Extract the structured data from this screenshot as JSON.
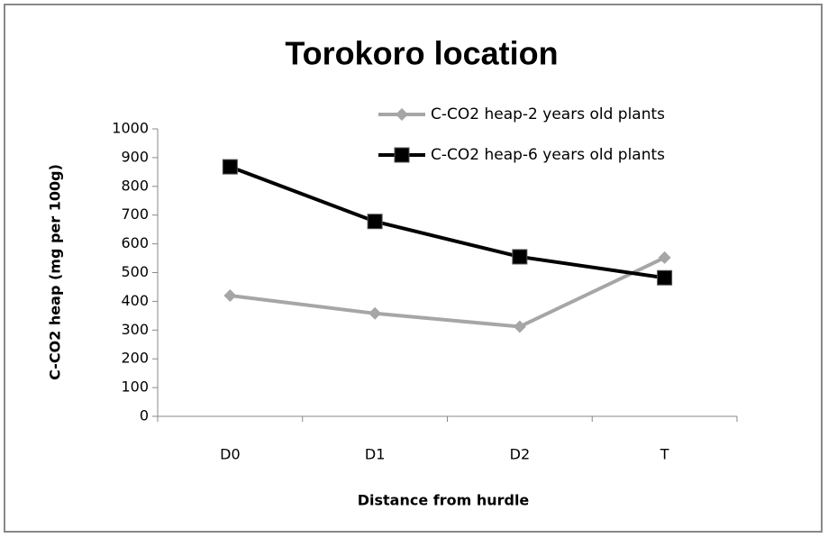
{
  "chart_data": {
    "type": "line",
    "title": "Torokoro location",
    "xlabel": "Distance from hurdle",
    "ylabel": "C-CO2  heap (mg per 100g)",
    "categories": [
      "D0",
      "D1",
      "D2",
      "T"
    ],
    "series": [
      {
        "name": "C-CO2  heap-2 years old plants",
        "color": "#a6a6a6",
        "marker": "diamond",
        "values": [
          420,
          358,
          312,
          552
        ]
      },
      {
        "name": "C-CO2  heap-6 years old plants",
        "color": "#000000",
        "marker": "square",
        "values": [
          868,
          678,
          555,
          482
        ]
      }
    ],
    "ylim": [
      0,
      1000
    ],
    "yticks": [
      0,
      100,
      200,
      300,
      400,
      500,
      600,
      700,
      800,
      900,
      1000
    ],
    "grid": false,
    "legend": "top-right"
  }
}
